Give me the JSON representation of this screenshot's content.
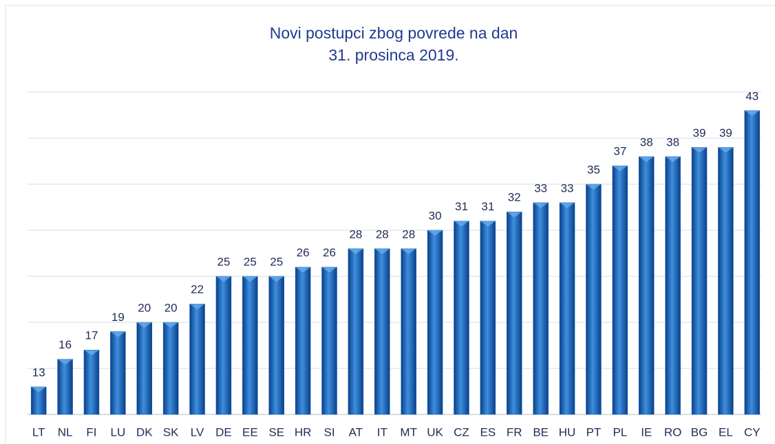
{
  "chart_data": {
    "type": "bar",
    "title": [
      "Novi postupci zbog povrede na dan",
      "31. prosinca 2019."
    ],
    "categories": [
      "LT",
      "NL",
      "FI",
      "LU",
      "DK",
      "SK",
      "LV",
      "DE",
      "EE",
      "SE",
      "HR",
      "SI",
      "AT",
      "IT",
      "MT",
      "UK",
      "CZ",
      "ES",
      "FR",
      "BE",
      "HU",
      "PT",
      "PL",
      "IE",
      "RO",
      "BG",
      "EL",
      "CY"
    ],
    "values": [
      13,
      16,
      17,
      19,
      20,
      20,
      22,
      25,
      25,
      25,
      26,
      26,
      28,
      28,
      28,
      30,
      31,
      31,
      32,
      33,
      33,
      35,
      37,
      38,
      38,
      39,
      39,
      43
    ],
    "color": "#1565c0",
    "ylim": [
      10,
      45
    ],
    "yticks": [
      10,
      15,
      20,
      25,
      30,
      35,
      40,
      45
    ],
    "grid": true
  }
}
